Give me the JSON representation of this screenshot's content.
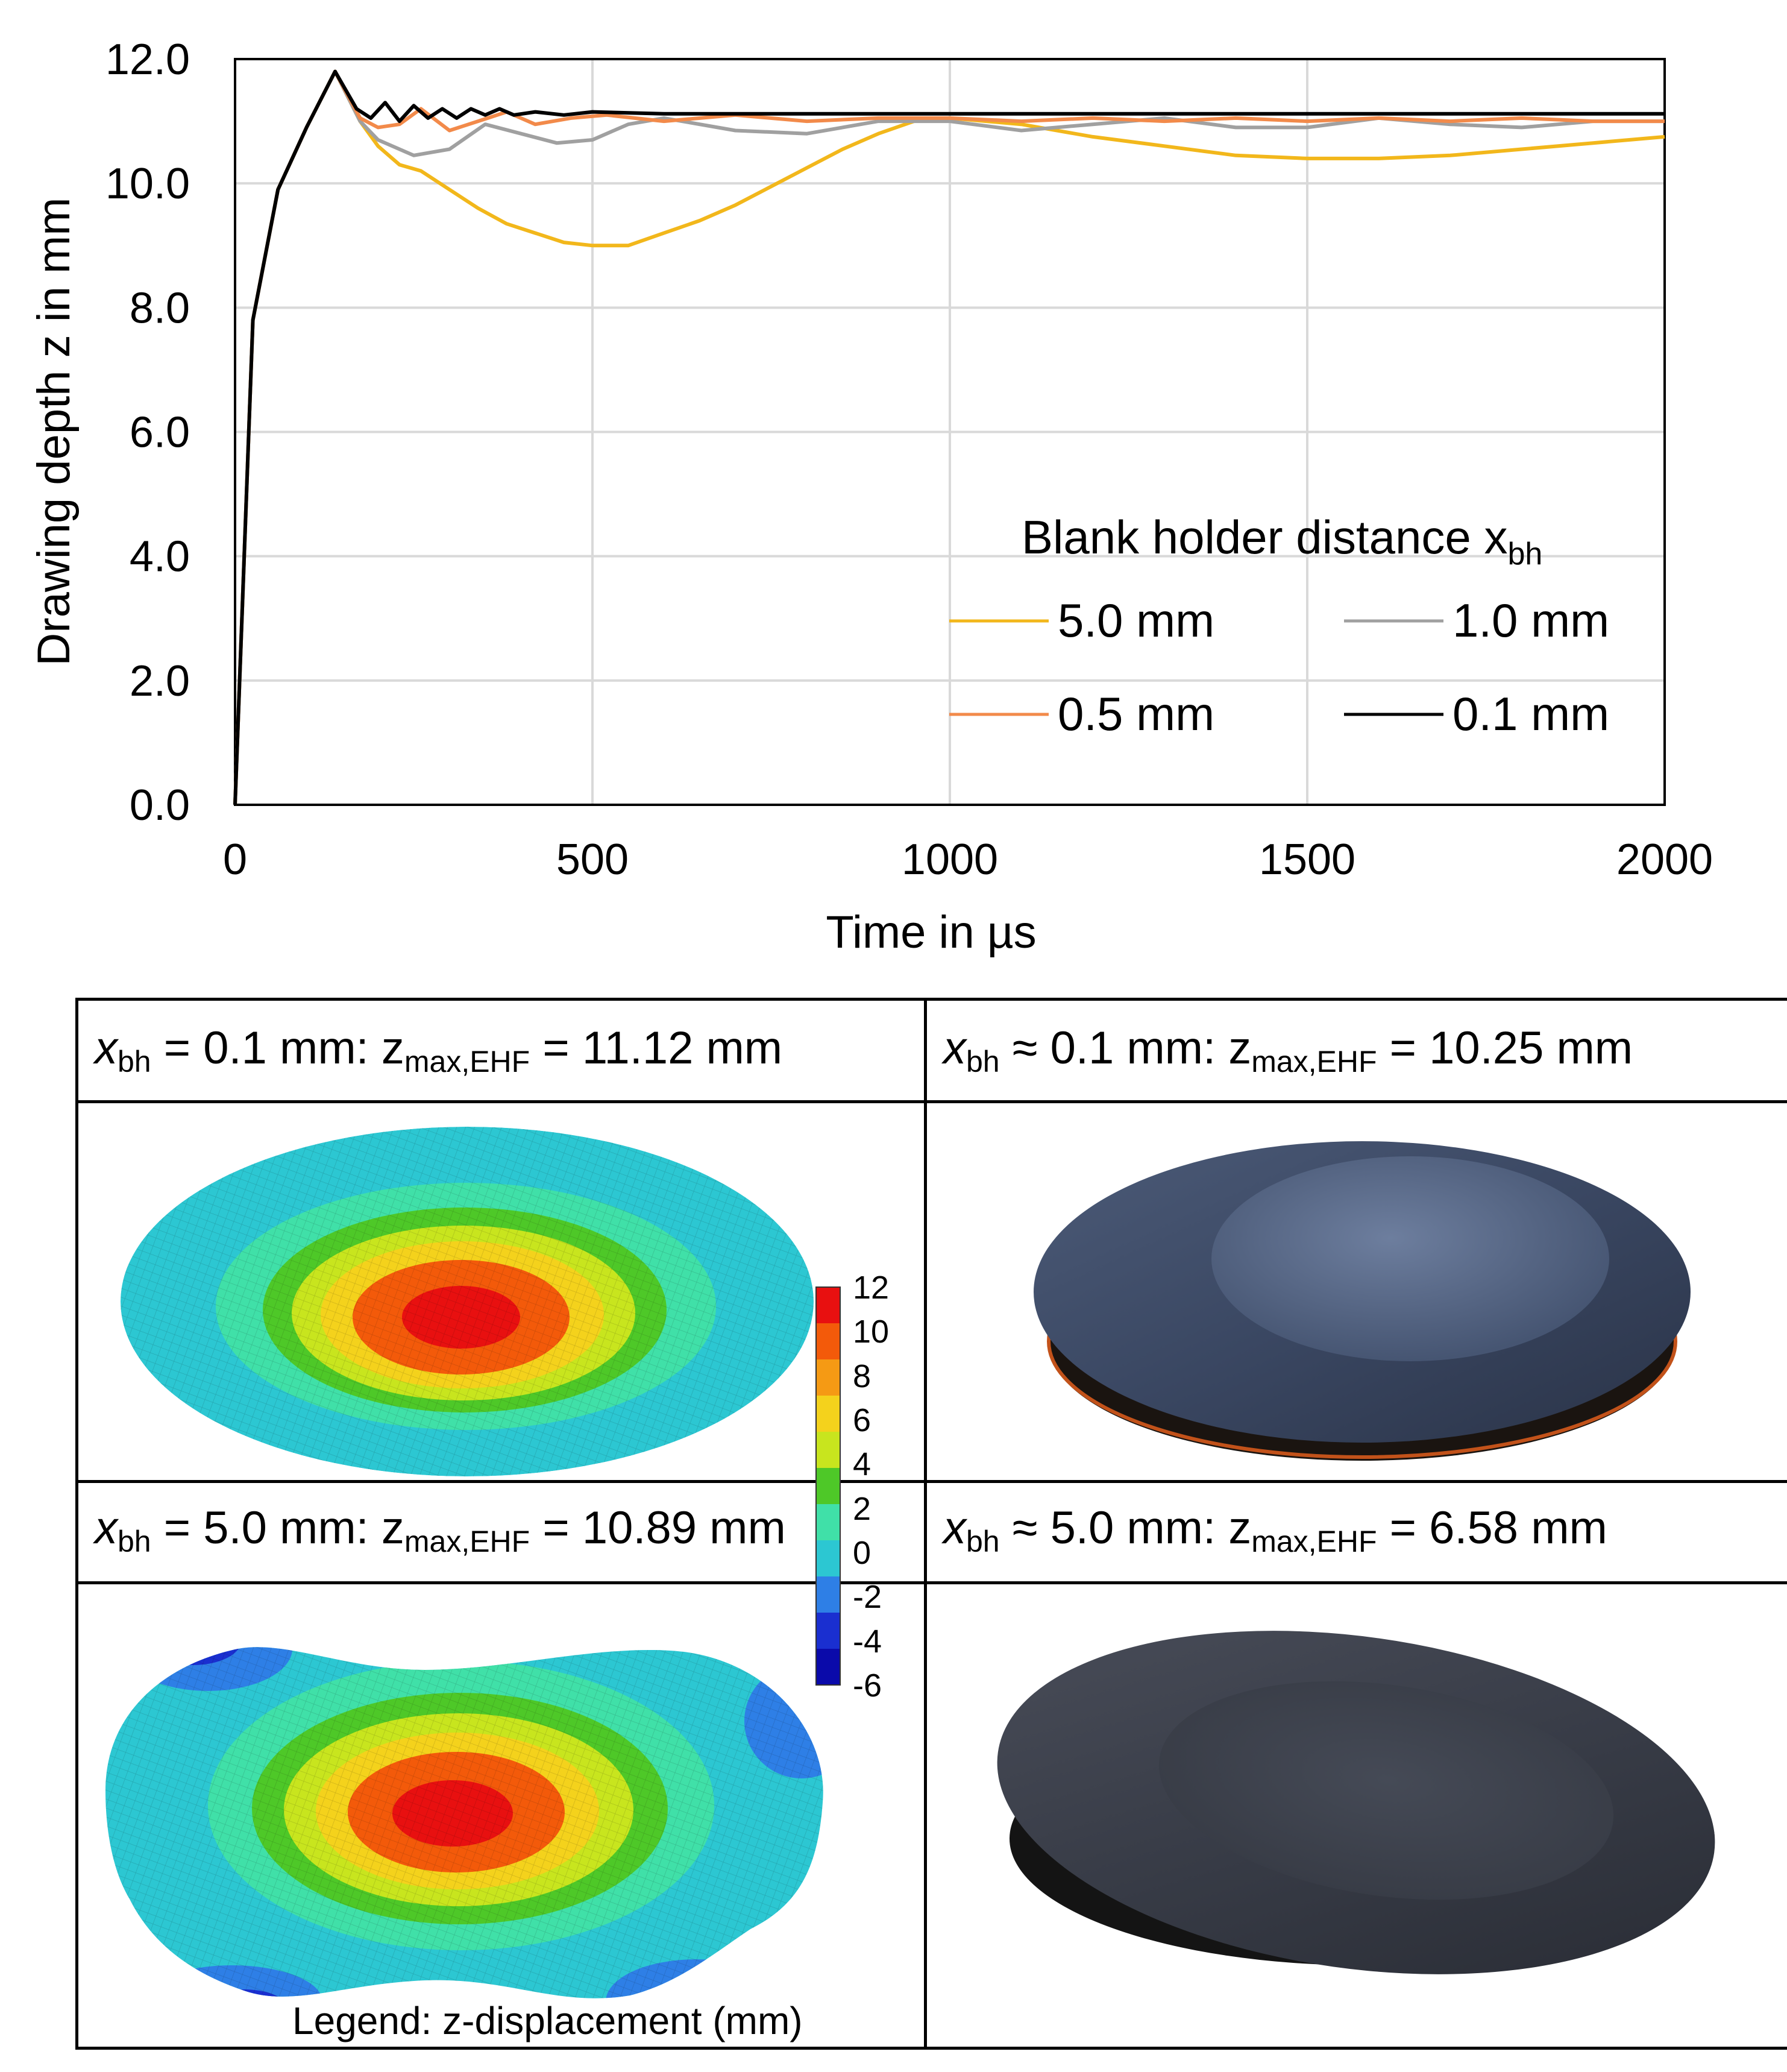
{
  "chart_data": {
    "type": "line",
    "title": "",
    "xlabel": "Time in µs",
    "ylabel": "Drawing depth z in mm",
    "xlim": [
      0,
      2000
    ],
    "ylim": [
      0,
      12
    ],
    "xticks": [
      "0",
      "500",
      "1000",
      "1500",
      "2000"
    ],
    "yticks": [
      "0.0",
      "2.0",
      "4.0",
      "6.0",
      "8.0",
      "10.0",
      "12.0"
    ],
    "grid": true,
    "legend_title": "Blank holder distance x",
    "legend_title_sub": "bh",
    "legend_position": "lower-right",
    "series": [
      {
        "name": "5.0 mm",
        "color": "#F2B71B",
        "x": [
          0,
          25,
          60,
          100,
          140,
          175,
          200,
          230,
          260,
          300,
          340,
          380,
          420,
          460,
          500,
          550,
          600,
          650,
          700,
          750,
          800,
          850,
          900,
          950,
          1000,
          1100,
          1200,
          1300,
          1400,
          1500,
          1600,
          1700,
          1800,
          1900,
          2000
        ],
        "y": [
          0,
          7.8,
          9.9,
          10.9,
          11.8,
          11.0,
          10.6,
          10.3,
          10.2,
          9.9,
          9.6,
          9.35,
          9.2,
          9.05,
          9.0,
          9.0,
          9.2,
          9.4,
          9.65,
          9.95,
          10.25,
          10.55,
          10.8,
          11.0,
          11.05,
          10.95,
          10.75,
          10.6,
          10.45,
          10.4,
          10.4,
          10.45,
          10.55,
          10.65,
          10.75
        ]
      },
      {
        "name": "1.0 mm",
        "color": "#A0A0A0",
        "x": [
          0,
          25,
          60,
          100,
          140,
          175,
          200,
          250,
          300,
          350,
          400,
          450,
          500,
          550,
          600,
          700,
          800,
          900,
          1000,
          1100,
          1200,
          1300,
          1400,
          1500,
          1600,
          1700,
          1800,
          1900,
          2000
        ],
        "y": [
          0,
          7.8,
          9.9,
          10.9,
          11.8,
          11.0,
          10.7,
          10.45,
          10.55,
          10.95,
          10.8,
          10.65,
          10.7,
          10.95,
          11.05,
          10.85,
          10.8,
          11.0,
          11.0,
          10.85,
          10.95,
          11.05,
          10.9,
          10.9,
          11.05,
          10.95,
          10.9,
          11.0,
          11.0
        ]
      },
      {
        "name": "0.5 mm",
        "color": "#F28A4A",
        "x": [
          0,
          25,
          60,
          100,
          140,
          175,
          200,
          230,
          260,
          300,
          340,
          380,
          420,
          470,
          520,
          600,
          700,
          800,
          900,
          1000,
          1100,
          1200,
          1300,
          1400,
          1500,
          1600,
          1700,
          1800,
          1900,
          2000
        ],
        "y": [
          0,
          7.8,
          9.9,
          10.9,
          11.8,
          11.05,
          10.9,
          10.95,
          11.2,
          10.85,
          11.0,
          11.15,
          10.95,
          11.05,
          11.1,
          11.0,
          11.1,
          11.0,
          11.05,
          11.05,
          11.0,
          11.05,
          11.0,
          11.05,
          11.0,
          11.05,
          11.0,
          11.05,
          11.0,
          11.0
        ]
      },
      {
        "name": "0.1 mm",
        "color": "#000000",
        "x": [
          0,
          25,
          60,
          100,
          140,
          170,
          190,
          210,
          230,
          250,
          270,
          290,
          310,
          330,
          350,
          370,
          390,
          420,
          460,
          500,
          600,
          800,
          1000,
          1200,
          1400,
          1600,
          1800,
          2000
        ],
        "y": [
          0,
          7.8,
          9.9,
          10.9,
          11.8,
          11.2,
          11.05,
          11.3,
          11.0,
          11.25,
          11.05,
          11.2,
          11.05,
          11.2,
          11.1,
          11.2,
          11.1,
          11.15,
          11.1,
          11.15,
          11.12,
          11.12,
          11.12,
          11.12,
          11.12,
          11.12,
          11.12,
          11.12
        ]
      }
    ]
  },
  "panels": {
    "sim_top": {
      "x": "x",
      "x_sub": "bh",
      "rel": " = 0.1 mm: ",
      "z": "z",
      "z_sub": "max,EHF",
      "val": " = 11.12 mm"
    },
    "exp_top": {
      "x": "x",
      "x_sub": "bh",
      "rel": " ≈ 0.1 mm: ",
      "z": "z",
      "z_sub": "max,EHF",
      "val": " = 10.25 mm"
    },
    "sim_bottom": {
      "x": "x",
      "x_sub": "bh",
      "rel": " = 5.0 mm: ",
      "z": "z",
      "z_sub": "max,EHF",
      "val": " = 10.89 mm"
    },
    "exp_bottom": {
      "x": "x",
      "x_sub": "bh",
      "rel": " ≈ 5.0 mm: ",
      "z": "z",
      "z_sub": "max,EHF",
      "val": " = 6.58 mm"
    },
    "colorbar": {
      "labels": [
        "12",
        "10",
        "8",
        "6",
        "4",
        "2",
        "0",
        "-2",
        "-4",
        "-6"
      ],
      "colors": [
        "#E81010",
        "#F35A0A",
        "#F59A14",
        "#F4D21C",
        "#C8E51E",
        "#4EC828",
        "#40E0A8",
        "#2CC7D2",
        "#2E7FE6",
        "#1A2FD0",
        "#0A0AAA"
      ]
    },
    "legend_note": "Legend: z-displacement (mm)"
  }
}
